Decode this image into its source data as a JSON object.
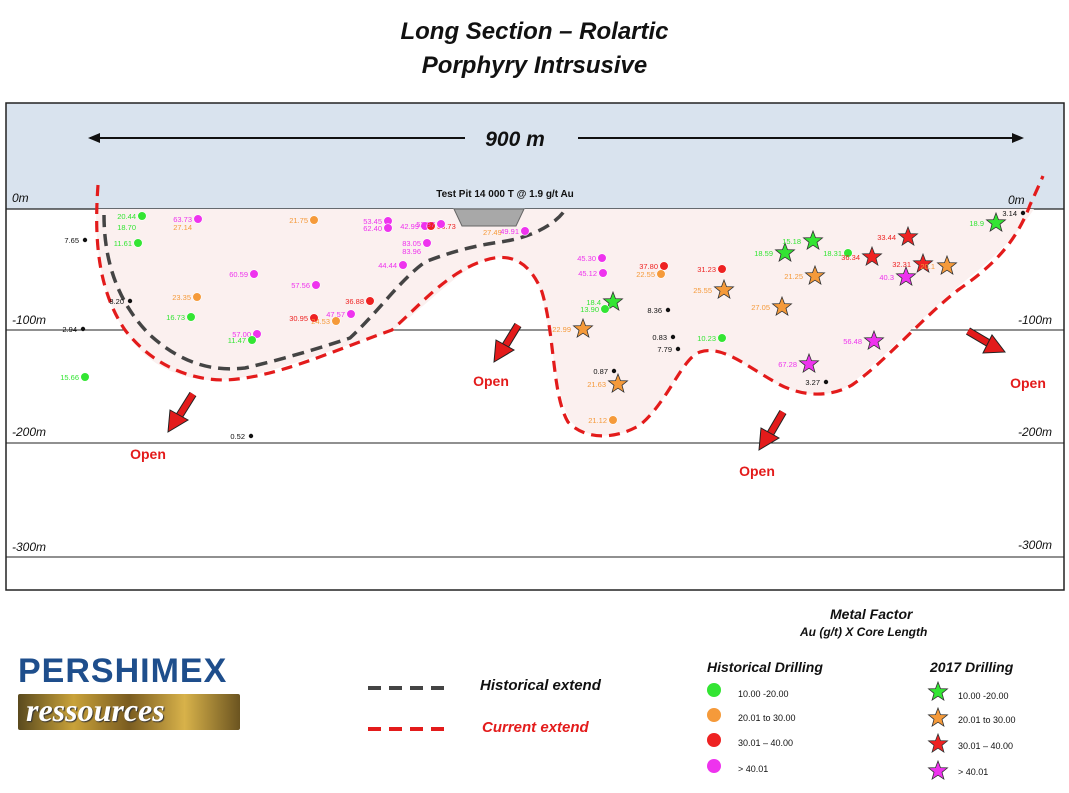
{
  "title": {
    "line1": "Long Section – Rolartic",
    "line2": "Porphyry Intrsusive"
  },
  "section": {
    "width_label": "900 m",
    "test_pit": "Test Pit 14 000 T @ 1.9 g/t Au",
    "depth_labels": [
      "0m",
      "-100m",
      "-200m",
      "-300m"
    ],
    "open_label": "Open",
    "colors": {
      "sky": "#d9e3ee",
      "shell_fill": "#fbf0ef",
      "historical_line": "#444444",
      "current_line": "#e31b1b",
      "arrow": "#e31b1b",
      "open_text": "#e31b1b"
    }
  },
  "classes": {
    "green": "#33e533",
    "orange": "#f59a3a",
    "red": "#ee2222",
    "magenta": "#ee33ee",
    "black": "#111111"
  },
  "drill_points": [
    {
      "value": "20.44",
      "marker": "dot",
      "cls": "green"
    },
    {
      "value": "18.70",
      "marker": "none",
      "cls": "green"
    },
    {
      "value": "63.73",
      "marker": "dot",
      "cls": "magenta"
    },
    {
      "value": "27.14",
      "marker": "none",
      "cls": "orange"
    },
    {
      "value": "7.65",
      "marker": "dot",
      "cls": "black"
    },
    {
      "value": "11.61",
      "marker": "dot",
      "cls": "green"
    },
    {
      "value": "21.75",
      "marker": "dot",
      "cls": "orange"
    },
    {
      "value": "53.45",
      "marker": "dot",
      "cls": "magenta"
    },
    {
      "value": "62.40",
      "marker": "dot",
      "cls": "magenta"
    },
    {
      "value": "42.99",
      "marker": "dot",
      "cls": "magenta"
    },
    {
      "value": "36.73",
      "marker": "dot",
      "cls": "red"
    },
    {
      "value": "52.87",
      "marker": "dot",
      "cls": "magenta"
    },
    {
      "value": "27.49",
      "marker": "none",
      "cls": "orange"
    },
    {
      "value": "49.91",
      "marker": "dot",
      "cls": "magenta"
    },
    {
      "value": "83.05",
      "marker": "dot",
      "cls": "magenta"
    },
    {
      "value": "83.96",
      "marker": "none",
      "cls": "magenta"
    },
    {
      "value": "44.44",
      "marker": "dot",
      "cls": "magenta"
    },
    {
      "value": "60.59",
      "marker": "dot",
      "cls": "magenta"
    },
    {
      "value": "57.56",
      "marker": "dot",
      "cls": "magenta"
    },
    {
      "value": "23.35",
      "marker": "dot",
      "cls": "orange"
    },
    {
      "value": "8.20",
      "marker": "dot",
      "cls": "black"
    },
    {
      "value": "16.73",
      "marker": "dot",
      "cls": "green"
    },
    {
      "value": "36.88",
      "marker": "dot",
      "cls": "red"
    },
    {
      "value": "30.95",
      "marker": "dot",
      "cls": "red"
    },
    {
      "value": "47.57",
      "marker": "dot",
      "cls": "magenta"
    },
    {
      "value": "24.53",
      "marker": "dot",
      "cls": "orange"
    },
    {
      "value": "2.94",
      "marker": "dot",
      "cls": "black"
    },
    {
      "value": "57.00",
      "marker": "dot",
      "cls": "magenta"
    },
    {
      "value": "11.47",
      "marker": "dot",
      "cls": "green"
    },
    {
      "value": "15.66",
      "marker": "dot",
      "cls": "green"
    },
    {
      "value": "0.52",
      "marker": "dot",
      "cls": "black"
    },
    {
      "value": "45.30",
      "marker": "dot",
      "cls": "magenta"
    },
    {
      "value": "45.12",
      "marker": "dot",
      "cls": "magenta"
    },
    {
      "value": "37.80",
      "marker": "dot",
      "cls": "red"
    },
    {
      "value": "22.55",
      "marker": "dot",
      "cls": "orange"
    },
    {
      "value": "31.23",
      "marker": "dot",
      "cls": "red"
    },
    {
      "value": "25.55",
      "marker": "star",
      "cls": "orange"
    },
    {
      "value": "18.4",
      "marker": "star",
      "cls": "green"
    },
    {
      "value": "13.90",
      "marker": "dot",
      "cls": "green"
    },
    {
      "value": "8.36",
      "marker": "dot",
      "cls": "black"
    },
    {
      "value": "22.99",
      "marker": "star",
      "cls": "orange"
    },
    {
      "value": "0.83",
      "marker": "dot",
      "cls": "black"
    },
    {
      "value": "7.79",
      "marker": "dot",
      "cls": "black"
    },
    {
      "value": "10.23",
      "marker": "dot",
      "cls": "green"
    },
    {
      "value": "0.87",
      "marker": "dot",
      "cls": "black"
    },
    {
      "value": "21.63",
      "marker": "star",
      "cls": "orange"
    },
    {
      "value": "21.12",
      "marker": "dot",
      "cls": "orange"
    },
    {
      "value": "18.59",
      "marker": "star",
      "cls": "green"
    },
    {
      "value": "15.18",
      "marker": "star",
      "cls": "green"
    },
    {
      "value": "21.25",
      "marker": "star",
      "cls": "orange"
    },
    {
      "value": "18.31",
      "marker": "dot",
      "cls": "green"
    },
    {
      "value": "36.34",
      "marker": "star",
      "cls": "red"
    },
    {
      "value": "33.44",
      "marker": "star",
      "cls": "red"
    },
    {
      "value": "32.31",
      "marker": "star",
      "cls": "red"
    },
    {
      "value": "20.1",
      "marker": "star",
      "cls": "orange"
    },
    {
      "value": "40.3",
      "marker": "star",
      "cls": "magenta"
    },
    {
      "value": "27.05",
      "marker": "star",
      "cls": "orange"
    },
    {
      "value": "56.48",
      "marker": "star",
      "cls": "magenta"
    },
    {
      "value": "67.28",
      "marker": "star",
      "cls": "magenta"
    },
    {
      "value": "3.27",
      "marker": "dot",
      "cls": "black"
    },
    {
      "value": "18.9",
      "marker": "star",
      "cls": "green"
    },
    {
      "value": "3.14",
      "marker": "dot",
      "cls": "black"
    }
  ],
  "legend": {
    "metal_factor_title": "Metal Factor",
    "metal_factor_formula": "Au (g/t)  X Core Length",
    "historical_heading": "Historical Drilling",
    "drilling_2017_heading": "2017  Drilling",
    "historical_items": [
      {
        "label": "10.00 -20.00",
        "cls": "green"
      },
      {
        "label": "20.01 to 30.00",
        "cls": "orange"
      },
      {
        "label": "30.01 – 40.00",
        "cls": "red"
      },
      {
        "label": "> 40.01",
        "cls": "magenta"
      }
    ],
    "drilling_2017_items": [
      {
        "label": "10.00 -20.00",
        "cls": "green"
      },
      {
        "label": "20.01 to 30.00",
        "cls": "orange"
      },
      {
        "label": "30.01 – 40.00",
        "cls": "red"
      },
      {
        "label": "> 40.01",
        "cls": "magenta"
      }
    ],
    "historical_extend_label": "Historical extend",
    "current_extend_label": "Current extend"
  },
  "logo": {
    "top_text": "PERSHIMEX",
    "bottom_text": "ressources"
  }
}
